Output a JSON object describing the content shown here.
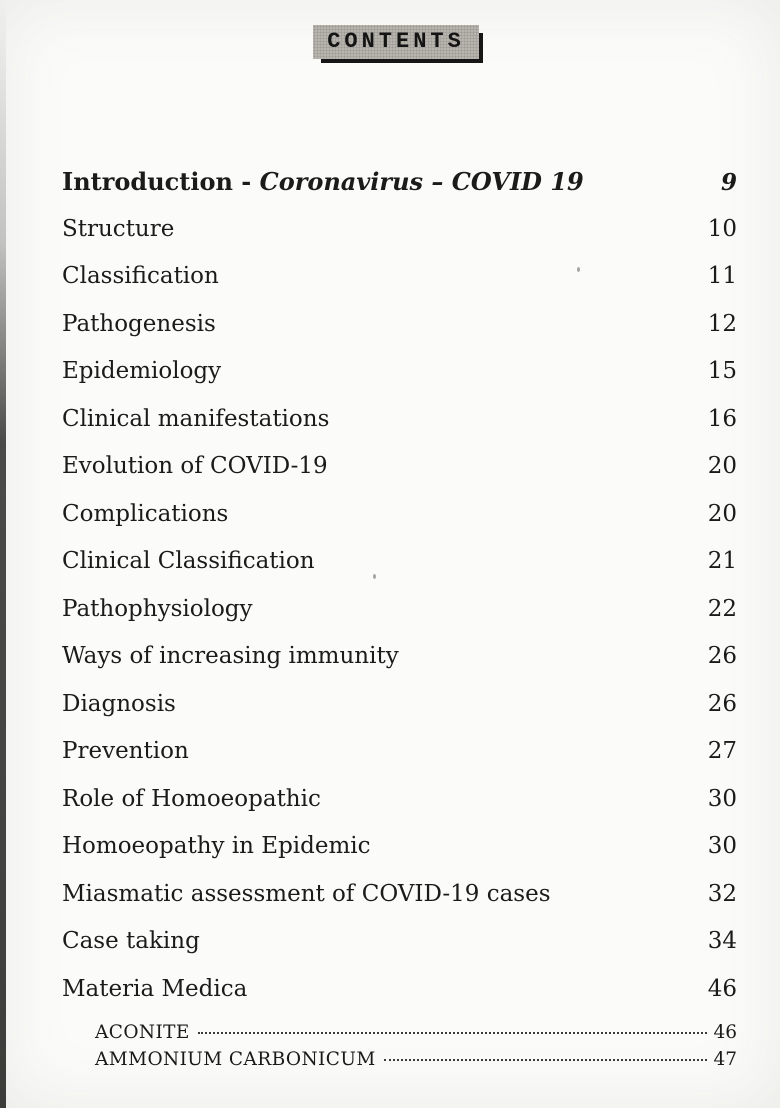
{
  "header": {
    "title": "CONTENTS"
  },
  "toc": {
    "entries": [
      {
        "prefix": "Introduction - ",
        "italic": "Coronavirus – COVID 19",
        "page": "9"
      },
      {
        "title": "Structure",
        "page": "10"
      },
      {
        "title": "Classification",
        "page": "11"
      },
      {
        "title": "Pathogenesis",
        "page": "12"
      },
      {
        "title": "Epidemiology",
        "page": "15"
      },
      {
        "title": "Clinical manifestations",
        "page": "16"
      },
      {
        "title": "Evolution of COVID-19",
        "page": "20"
      },
      {
        "title": "Complications",
        "page": "20"
      },
      {
        "title": "Clinical Classification",
        "page": "21"
      },
      {
        "title": "Pathophysiology",
        "page": "22"
      },
      {
        "title": "Ways of increasing immunity",
        "page": "26"
      },
      {
        "title": "Diagnosis",
        "page": "26"
      },
      {
        "title": "Prevention",
        "page": "27"
      },
      {
        "title": "Role of Homoeopathic",
        "page": "30"
      },
      {
        "title": "Homoeopathy in Epidemic",
        "page": "30"
      },
      {
        "title": "Miasmatic assessment of COVID-19 cases",
        "page": "32"
      },
      {
        "title": "Case taking",
        "page": "34"
      },
      {
        "title": "Materia Medica",
        "page": "46"
      }
    ],
    "sub_entries": [
      {
        "title": "ACONITE",
        "page": "46"
      },
      {
        "title": "AMMONIUM CARBONICUM",
        "page": "47"
      }
    ]
  },
  "colors": {
    "paper": "#fbfbf9",
    "ink": "#1b1b1b",
    "header_box_bg": "#b9b6b0",
    "header_box_shadow": "#171717"
  }
}
